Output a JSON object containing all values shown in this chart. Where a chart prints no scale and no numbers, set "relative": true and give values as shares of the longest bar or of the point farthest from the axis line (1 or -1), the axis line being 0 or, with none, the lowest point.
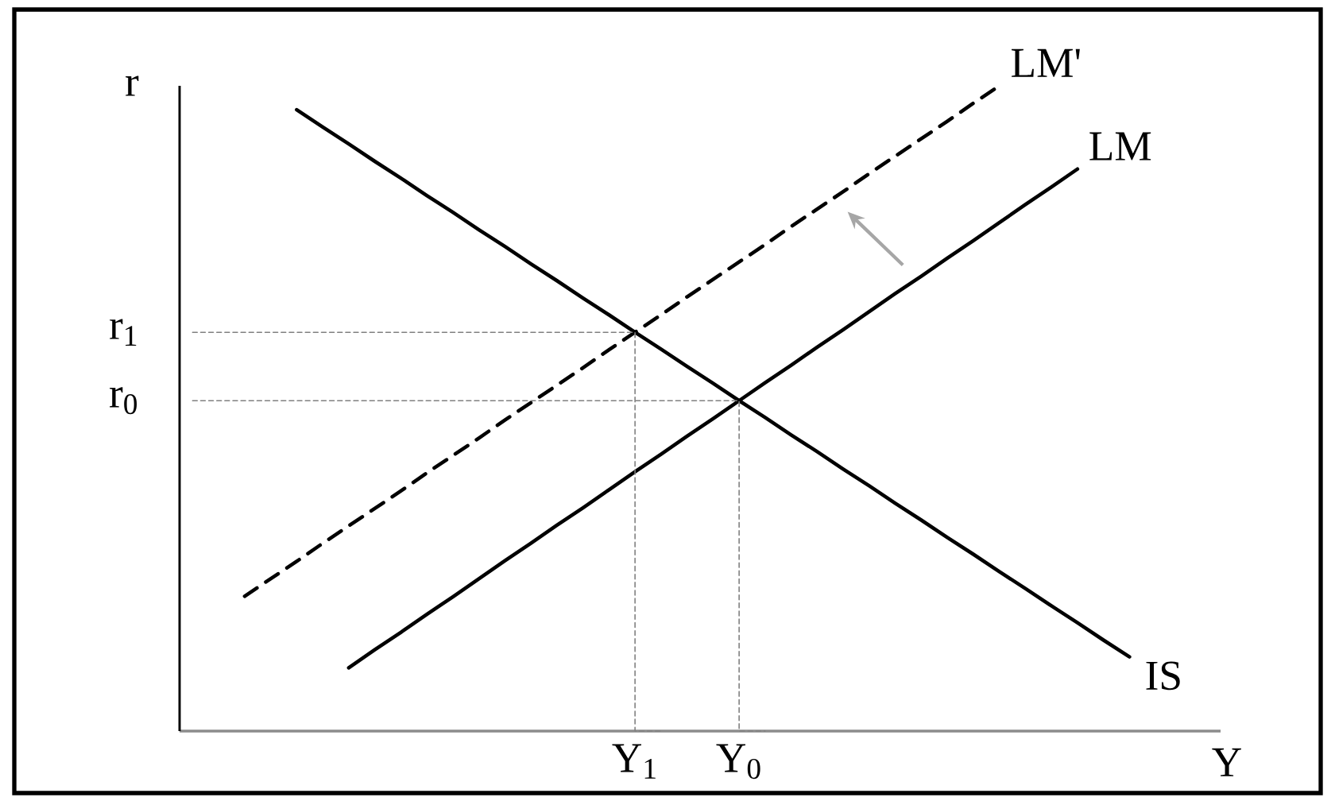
{
  "chart_data": {
    "type": "line",
    "relative": true,
    "xlabel": "Y",
    "ylabel": "r",
    "tick_labels": "x",
    "marker": "none",
    "categories": [
      null,
      null,
      null,
      null,
      null,
      null,
      null,
      null,
      null,
      null,
      null,
      null,
      null,
      null,
      null,
      null,
      null,
      "Y$_{1}$",
      null,
      null,
      null,
      "Y$_{0}$",
      null,
      null,
      null,
      null,
      null,
      null,
      null,
      null,
      null,
      null,
      null,
      null,
      null,
      null,
      null,
      null,
      null,
      null
    ],
    "series": [
      {
        "name": "IS",
        "color": "#000000",
        "line_style": "solid",
        "values": [
          null,
          null,
          null,
          null,
          0.963,
          0.936,
          0.91,
          0.883,
          0.857,
          0.83,
          0.804,
          0.777,
          0.751,
          0.724,
          0.698,
          0.671,
          0.645,
          0.618,
          0.592,
          0.565,
          0.539,
          0.512,
          0.486,
          0.459,
          0.433,
          0.406,
          0.38,
          0.353,
          0.327,
          0.3,
          0.274,
          0.247,
          0.221,
          0.194,
          0.168,
          0.141,
          0.115,
          null,
          null,
          null
        ]
      },
      {
        "name": "LM",
        "color": "#000000",
        "line_style": "solid",
        "values": [
          null,
          null,
          null,
          null,
          null,
          null,
          0.098,
          0.126,
          0.153,
          0.181,
          0.208,
          0.236,
          0.264,
          0.291,
          0.319,
          0.346,
          0.374,
          0.402,
          0.429,
          0.457,
          0.484,
          0.512,
          0.54,
          0.567,
          0.595,
          0.622,
          0.65,
          0.678,
          0.705,
          0.733,
          0.76,
          0.788,
          0.816,
          0.843,
          0.871,
          null,
          null,
          null,
          null,
          null
        ]
      },
      {
        "name": "LM'",
        "color": "#000000",
        "line_style": "dashed",
        "values": [
          null,
          null,
          0.209,
          0.236,
          0.263,
          0.291,
          0.318,
          0.345,
          0.372,
          0.4,
          0.427,
          0.454,
          0.482,
          0.509,
          0.536,
          0.563,
          0.591,
          0.618,
          0.645,
          0.673,
          0.7,
          0.727,
          0.754,
          0.782,
          0.809,
          0.836,
          0.864,
          0.891,
          0.918,
          0.945,
          0.973,
          1.0,
          null,
          null,
          null,
          null,
          null,
          null,
          null,
          null
        ]
      },
      {
        "type": "step",
        "color": "#808080",
        "line_style": "dotted",
        "values": [
          0.618,
          0.618,
          0.618,
          0.618,
          0.618,
          0.618,
          0.618,
          0.618,
          0.618,
          0.618,
          0.618,
          0.618,
          0.618,
          0.618,
          0.618,
          0.618,
          0.618,
          0.618,
          0,
          null,
          null,
          null,
          null,
          null,
          null,
          null,
          null,
          null,
          null,
          null,
          null,
          null,
          null,
          null,
          null,
          null,
          null,
          null,
          null,
          null
        ]
      },
      {
        "type": "step",
        "color": "#808080",
        "line_style": "dotted",
        "values": [
          0.512,
          0.512,
          0.512,
          0.512,
          0.512,
          0.512,
          0.512,
          0.512,
          0.512,
          0.512,
          0.512,
          0.512,
          0.512,
          0.512,
          0.512,
          0.512,
          0.512,
          0.512,
          0.512,
          0.512,
          0.512,
          0.512,
          0,
          null,
          null,
          null,
          null,
          null,
          null,
          null,
          null,
          null,
          null,
          null,
          null,
          null,
          null,
          null,
          null,
          null
        ]
      }
    ],
    "annotations": [
      "r$_{1}$",
      "r$_{0}$"
    ]
  }
}
